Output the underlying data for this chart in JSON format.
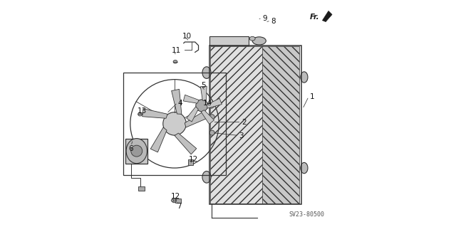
{
  "bg_color": "#ffffff",
  "line_color": "#333333",
  "diagram_code": "SV23-80500",
  "fr_label": "Fr."
}
